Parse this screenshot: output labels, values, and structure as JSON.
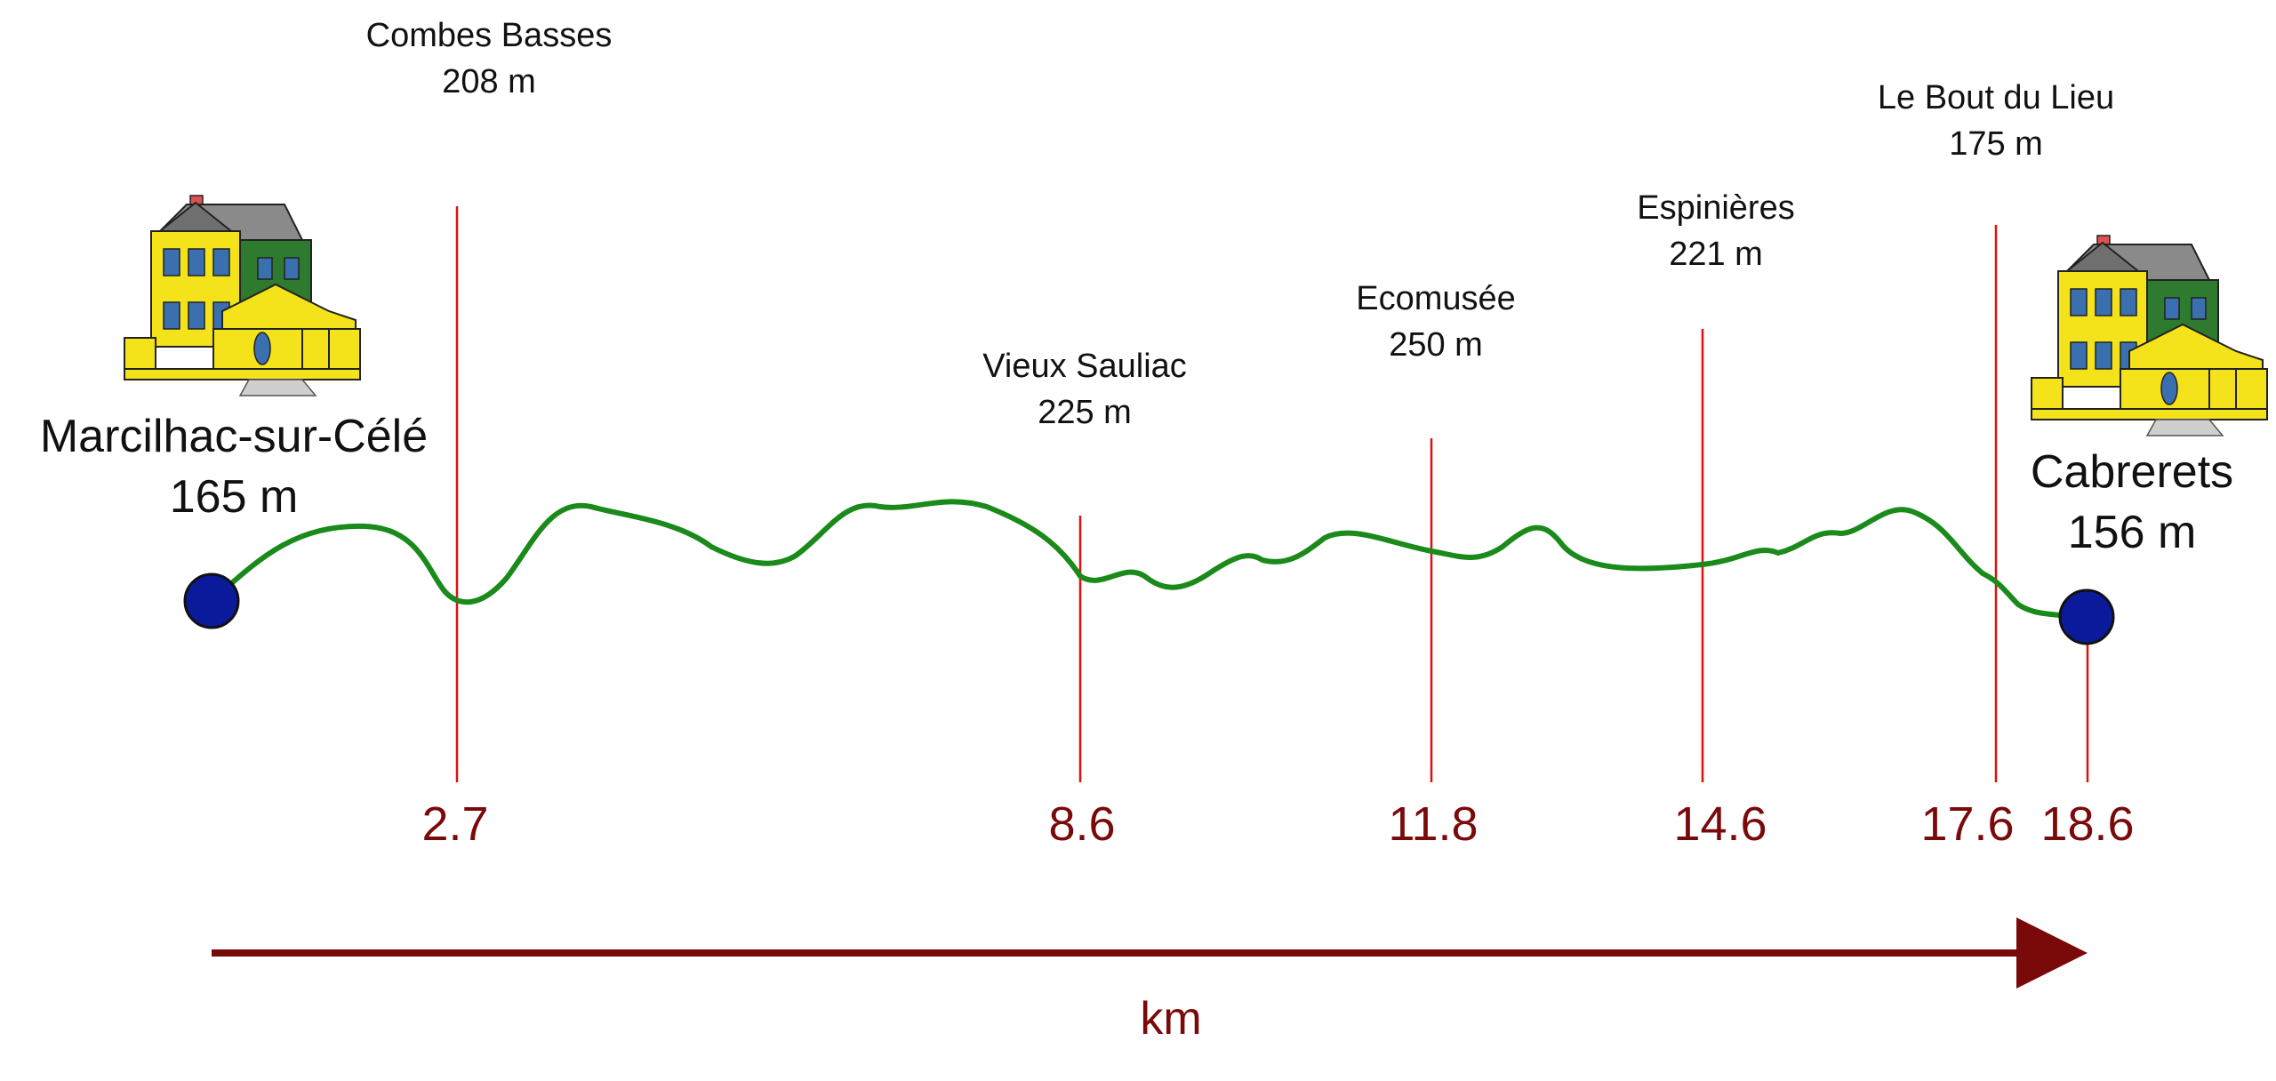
{
  "start": {
    "name": "Marcilhac-sur-Célé",
    "altitude": "165 m"
  },
  "end": {
    "name": "Cabrerets",
    "altitude": "156 m"
  },
  "waypoints": [
    {
      "name": "Combes Basses",
      "altitude": "208 m",
      "km": "2.7"
    },
    {
      "name": "Vieux Sauliac",
      "altitude": "225 m",
      "km": "8.6"
    },
    {
      "name": "Ecomusée",
      "altitude": "250 m",
      "km": "11.8"
    },
    {
      "name": "Espinières",
      "altitude": "221 m",
      "km": "14.6"
    },
    {
      "name": "Le Bout du Lieu",
      "altitude": "175 m",
      "km": "17.6"
    }
  ],
  "end_km": "18.6",
  "axis_unit": "km",
  "icons": {
    "start": "house-icon",
    "end": "house-icon"
  },
  "colors": {
    "profile": "#1a8a1a",
    "marker": "#e01010",
    "endpoint": "#0a1a9a",
    "axis": "#7a0a0a",
    "house_body": "#f4e21a",
    "house_trim": "#2e7a2e",
    "roof": "#8a8a8a"
  }
}
